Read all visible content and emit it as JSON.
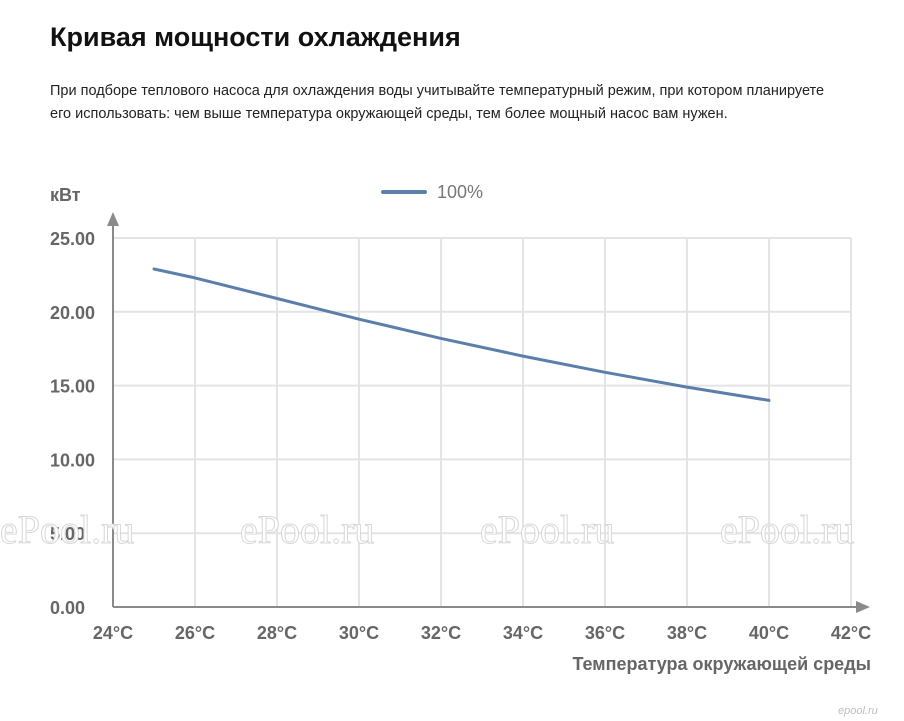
{
  "page": {
    "title": "Кривая мощности охлаждения",
    "description": "При подборе теплового насоса для охлаждения воды учитывайте температурный режим, при котором планируете его использовать: чем выше температура окружающей среды, тем более мощный насос вам нужен."
  },
  "colors": {
    "series": "#5b7faa",
    "grid": "#e4e4e4",
    "axis": "#8a8a8a",
    "text": "#666666"
  },
  "watermark": {
    "text": "ePool.ru",
    "corner": "epool.ru"
  },
  "chart_data": {
    "type": "line",
    "title": "",
    "xlabel": "Температура окружающей среды",
    "ylabel": "кВт",
    "x_ticks": [
      "24°C",
      "26°C",
      "28°C",
      "30°C",
      "32°C",
      "34°C",
      "36°C",
      "38°C",
      "40°C",
      "42°C"
    ],
    "y_ticks": [
      "0.00",
      "5.00",
      "10.00",
      "15.00",
      "20.00",
      "25.00"
    ],
    "xlim": [
      24,
      42
    ],
    "ylim": [
      0,
      25
    ],
    "grid": true,
    "legend": "top-center",
    "series": [
      {
        "name": "100%",
        "x": [
          25,
          26,
          28,
          30,
          32,
          34,
          36,
          38,
          40
        ],
        "y": [
          22.9,
          22.3,
          20.9,
          19.5,
          18.2,
          17.0,
          15.9,
          14.9,
          14.0
        ]
      }
    ]
  }
}
